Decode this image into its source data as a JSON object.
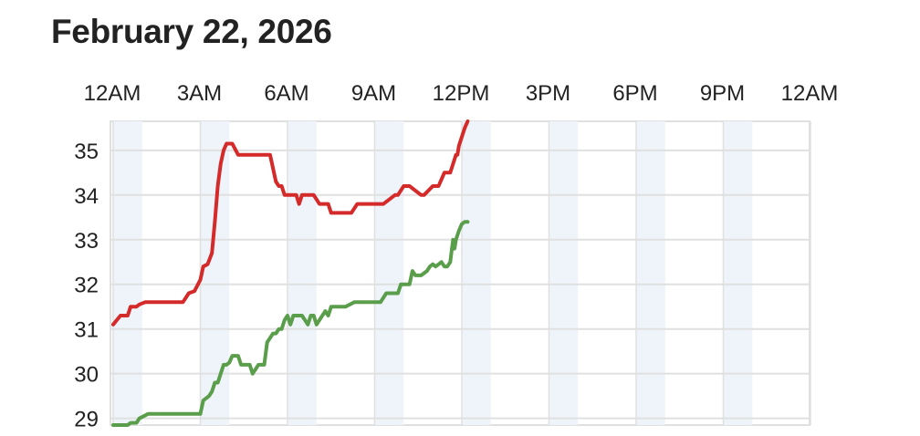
{
  "header": {
    "title": "February 22, 2026"
  },
  "chart_data": {
    "type": "line",
    "title": "February 22, 2026",
    "xlabel": "",
    "ylabel": "",
    "x_unit": "hours",
    "xlim": [
      0,
      24
    ],
    "ylim": [
      28.85,
      35.65
    ],
    "x_ticks": [
      0,
      3,
      6,
      9,
      12,
      15,
      18,
      21,
      24
    ],
    "x_tick_labels": [
      "12AM",
      "3AM",
      "6AM",
      "9AM",
      "12PM",
      "3PM",
      "6PM",
      "9PM",
      "12AM"
    ],
    "y_ticks": [
      29,
      30,
      31,
      32,
      33,
      34,
      35
    ],
    "y_tick_labels": [
      "29",
      "30",
      "31",
      "32",
      "33",
      "34",
      "35"
    ],
    "x_axis_position": "top",
    "grid": true,
    "colors": {
      "series1": "#d42a2a",
      "series2": "#5a9e4b",
      "band": "#eef4f9",
      "grid": "#e0e0e0"
    },
    "series": [
      {
        "x": [
          0.0,
          0.25,
          0.5,
          0.6,
          0.8,
          0.9,
          1.1,
          1.4,
          1.6,
          2.0,
          2.4,
          2.6,
          2.8,
          3.0,
          3.1,
          3.25,
          3.4,
          3.5,
          3.6,
          3.7,
          3.8,
          3.9,
          4.1,
          4.3,
          4.4,
          4.5,
          5.0,
          5.4,
          5.6,
          5.7,
          5.8,
          5.9,
          6.0,
          6.3,
          6.4,
          6.5,
          6.8,
          6.9,
          7.1,
          7.3,
          7.4,
          7.5,
          7.6,
          8.0,
          8.2,
          8.4,
          8.5,
          9.0,
          9.3,
          9.7,
          9.8,
          10.0,
          10.2,
          10.6,
          10.7,
          11.0,
          11.2,
          11.4,
          11.6,
          11.8,
          11.85,
          11.9,
          12.0,
          12.1,
          12.2
        ],
        "values": [
          31.1,
          31.3,
          31.3,
          31.5,
          31.5,
          31.55,
          31.6,
          31.6,
          31.6,
          31.6,
          31.6,
          31.8,
          31.85,
          32.1,
          32.4,
          32.45,
          32.7,
          33.4,
          34.2,
          34.7,
          35.0,
          35.15,
          35.15,
          34.9,
          34.9,
          34.9,
          34.9,
          34.9,
          34.3,
          34.2,
          34.2,
          34.0,
          34.0,
          34.0,
          33.8,
          34.0,
          34.0,
          34.0,
          33.8,
          33.8,
          33.8,
          33.6,
          33.6,
          33.6,
          33.6,
          33.8,
          33.8,
          33.8,
          33.8,
          34.0,
          34.0,
          34.2,
          34.2,
          34.0,
          34.0,
          34.2,
          34.2,
          34.5,
          34.5,
          34.9,
          34.9,
          35.1,
          35.3,
          35.5,
          35.65
        ]
      },
      {
        "x": [
          0.0,
          0.5,
          0.6,
          0.8,
          0.9,
          1.2,
          1.6,
          2.0,
          2.4,
          2.6,
          2.8,
          3.0,
          3.1,
          3.3,
          3.4,
          3.5,
          3.6,
          3.7,
          3.8,
          3.9,
          4.0,
          4.1,
          4.3,
          4.4,
          4.5,
          4.6,
          4.7,
          4.8,
          5.0,
          5.1,
          5.2,
          5.3,
          5.5,
          5.6,
          5.7,
          5.8,
          5.9,
          6.0,
          6.1,
          6.2,
          6.3,
          6.4,
          6.5,
          6.7,
          6.8,
          6.9,
          7.0,
          7.2,
          7.3,
          7.4,
          7.5,
          7.7,
          7.8,
          8.0,
          8.3,
          8.5,
          8.6,
          8.8,
          9.0,
          9.2,
          9.4,
          9.8,
          9.9,
          10.0,
          10.2,
          10.3,
          10.4,
          10.6,
          10.8,
          10.9,
          11.0,
          11.1,
          11.3,
          11.4,
          11.5,
          11.6,
          11.7,
          11.75,
          11.8,
          11.9,
          12.0,
          12.1,
          12.2
        ],
        "values": [
          28.85,
          28.85,
          28.9,
          28.9,
          29.0,
          29.1,
          29.1,
          29.1,
          29.1,
          29.1,
          29.1,
          29.1,
          29.4,
          29.5,
          29.6,
          29.8,
          29.8,
          30.0,
          30.2,
          30.2,
          30.25,
          30.4,
          30.4,
          30.2,
          30.2,
          30.2,
          30.2,
          30.0,
          30.2,
          30.2,
          30.2,
          30.7,
          30.9,
          30.9,
          31.0,
          31.0,
          31.2,
          31.3,
          31.1,
          31.3,
          31.3,
          31.3,
          31.3,
          31.1,
          31.3,
          31.3,
          31.1,
          31.3,
          31.4,
          31.3,
          31.5,
          31.5,
          31.5,
          31.5,
          31.6,
          31.6,
          31.6,
          31.6,
          31.6,
          31.6,
          31.8,
          31.8,
          32.0,
          32.0,
          32.0,
          32.3,
          32.2,
          32.2,
          32.3,
          32.4,
          32.45,
          32.4,
          32.5,
          32.4,
          32.4,
          32.5,
          33.0,
          32.8,
          33.0,
          33.2,
          33.35,
          33.4,
          33.4
        ]
      }
    ]
  }
}
